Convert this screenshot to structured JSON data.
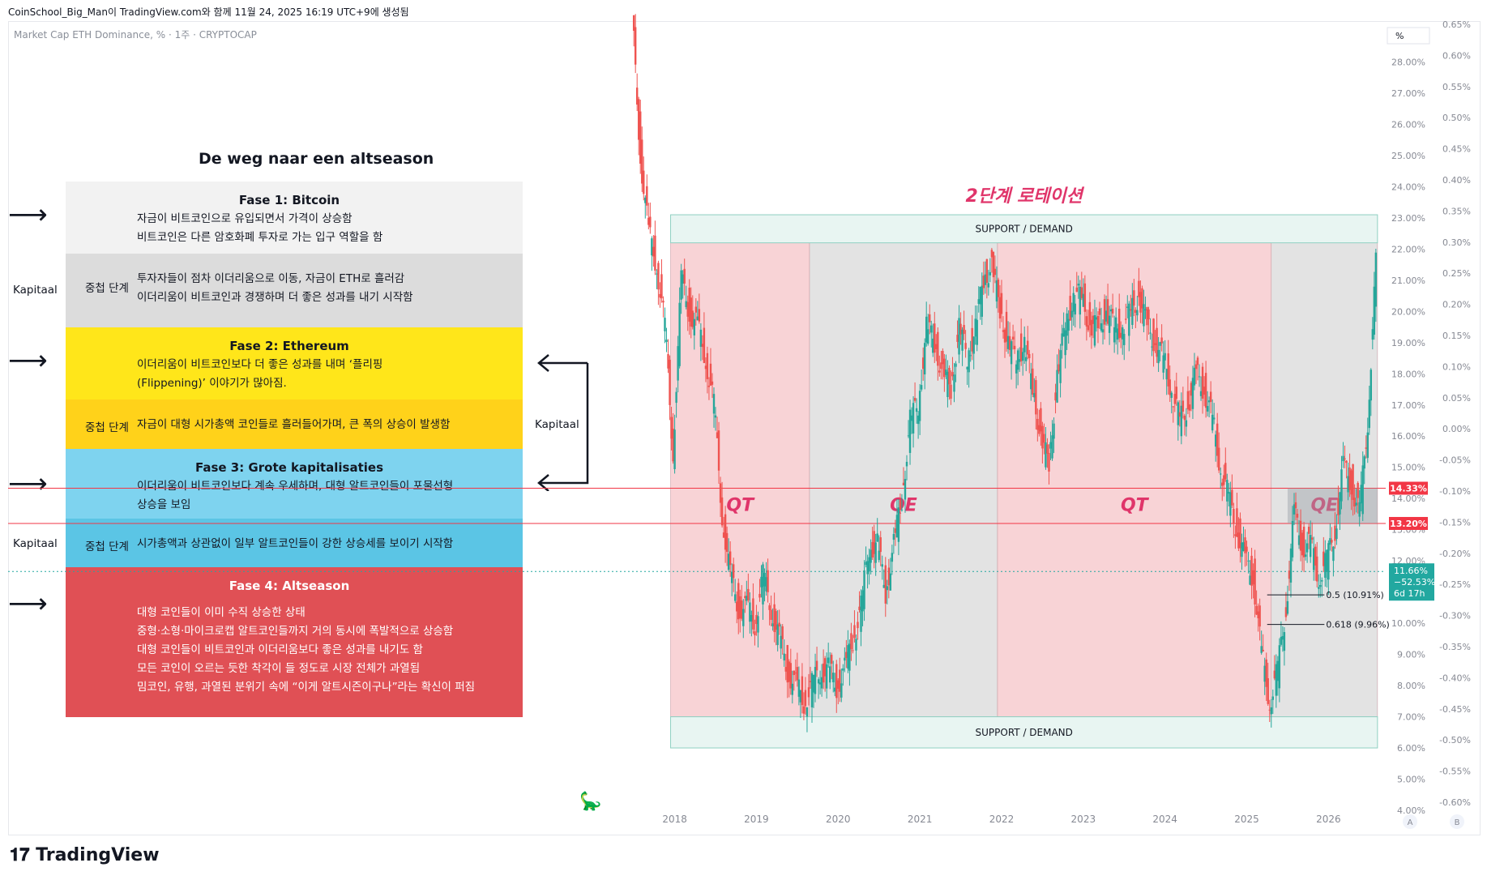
{
  "header": {
    "created_by": "CoinSchool_Big_Man이 TradingView.com와 함께 11월 24, 2025 16:19 UTC+9에 생성됨",
    "symbol_line": "Market Cap ETH Dominance, % · 1주 · CRYPTOCAP",
    "logo": "TradingView"
  },
  "infographic": {
    "title": "De weg naar een altseason",
    "boxes": [
      {
        "header": "Fase 1: Bitcoin",
        "side": "",
        "lines": [
          "자금이 비트코인으로 유입되면서 가격이 상승함",
          "비트코인은 다른 암호화폐 투자로 가는 입구 역할을 함"
        ],
        "color": "#f2f2f2"
      },
      {
        "header": "",
        "side": "중첩 단계",
        "lines": [
          "투자자들이 점차 이더리움으로 이동, 자금이 ETH로 흘러감",
          "이더리움이 비트코인과 경쟁하며 더 좋은 성과를 내기 시작함"
        ],
        "color": "#dcdcdc"
      },
      {
        "header": "Fase 2: Ethereum",
        "side": "",
        "lines": [
          "이더리움이 비트코인보다 더 좋은 성과를 내며 ‘플리핑",
          "(Flippening)’ 이야기가 많아짐."
        ],
        "color": "#ffe61a"
      },
      {
        "header": "",
        "side": "중첩 단계",
        "lines": [
          "자금이 대형 시가총액 코인들로 흘러들어가며, 큰 폭의 상승이 발생함"
        ],
        "color": "#ffd21a"
      },
      {
        "header": "Fase 3: Grote kapitalisaties",
        "side": "",
        "lines": [
          "이더리움이 비트코인보다 계속 우세하며, 대형 알트코인들이 포물선형",
          "상승을 보임"
        ],
        "color": "#7ed3ef"
      },
      {
        "header": "",
        "side": "중첩 단계",
        "lines": [
          "시가총액과 상관없이 일부 알트코인들이 강한 상승세를 보이기 시작함"
        ],
        "color": "#5bc5e5"
      },
      {
        "header": "Fase 4: Altseason",
        "side": "",
        "lines": [
          "대형 코인들이 이미 수직 상승한 상태",
          "중형·소형·마이크로캡 알트코인들까지 거의 동시에 폭발적으로 상승함",
          "대형 코인들이 비트코인과 이더리움보다 좋은 성과를 내기도 함",
          "모든 코인이 오르는 듯한 착각이 들 정도로 시장 전체가 과열됨",
          "밈코인, 유행, 과열된 분위기 속에 “이게 알트시즌이구나”라는 확신이 퍼짐"
        ],
        "color": "#e05055"
      }
    ],
    "kapitaal_labels": [
      "Kapitaal",
      "Kapitaal",
      "Kapitaal"
    ]
  },
  "chart_data": {
    "type": "candlestick",
    "title": "Market Cap ETH Dominance",
    "annotation_title": "2단계 로테이션",
    "x_tick_labels": [
      "2018",
      "2019",
      "2020",
      "2021",
      "2022",
      "2023",
      "2024",
      "2025",
      "2026"
    ],
    "y_axis_left_ticks": [
      "28.00%",
      "27.00%",
      "26.00%",
      "25.00%",
      "24.00%",
      "23.00%",
      "22.00%",
      "21.00%",
      "20.00%",
      "19.00%",
      "18.00%",
      "17.00%",
      "16.00%",
      "15.00%",
      "14.00%",
      "13.00%",
      "12.00%",
      "11.00%",
      "10.00%",
      "9.00%",
      "8.00%",
      "7.00%",
      "6.00%",
      "5.00%",
      "4.00%"
    ],
    "y_axis_right_ticks": [
      "0.65%",
      "0.60%",
      "0.55%",
      "0.50%",
      "0.45%",
      "0.40%",
      "0.35%",
      "0.30%",
      "0.25%",
      "0.20%",
      "0.15%",
      "0.10%",
      "0.05%",
      "0.00%",
      "-0.05%",
      "-0.10%",
      "-0.15%",
      "-0.20%",
      "-0.25%",
      "-0.30%",
      "-0.35%",
      "-0.40%",
      "-0.45%",
      "-0.50%",
      "-0.55%",
      "-0.60%"
    ],
    "ylim": [
      4,
      29
    ],
    "unit_label": "%",
    "price_labels": [
      {
        "text": "14.33%",
        "value": 14.33,
        "color": "#f23645"
      },
      {
        "text": "13.20%",
        "value": 13.2,
        "color": "#f23645"
      }
    ],
    "current_price": {
      "value": 11.66,
      "lines": [
        "11.66%",
        "−52.53%",
        "6d 17h"
      ],
      "color": "#22a8a0"
    },
    "fib_levels": [
      {
        "text": "0.5 (10.91%)",
        "value": 10.91
      },
      {
        "text": "0.618 (9.96%)",
        "value": 9.96
      }
    ],
    "zones": [
      {
        "label": "SUPPORT / DEMAND",
        "from": 22.2,
        "to": 23.1
      },
      {
        "label": "SUPPORT / DEMAND",
        "from": 6.0,
        "to": 7.0
      }
    ],
    "regimes": [
      {
        "label": "QT",
        "start": 2017.95,
        "end": 2019.65,
        "color": "#f8d3d6"
      },
      {
        "label": "QE",
        "start": 2019.65,
        "end": 2021.95,
        "color": "#e3e3e3"
      },
      {
        "label": "QT",
        "start": 2021.95,
        "end": 2025.3,
        "color": "#f8d3d6"
      },
      {
        "label": "QE",
        "start": 2025.3,
        "end": 2026.6,
        "color": "#e3e3e3"
      }
    ],
    "series": [
      {
        "x": [
          2017.5,
          2017.6,
          2017.7,
          2017.8,
          2017.9,
          2018.0,
          2018.1,
          2018.2,
          2018.3,
          2018.4,
          2018.5,
          2018.6,
          2018.7,
          2018.8,
          2018.9,
          2019.0,
          2019.1,
          2019.2,
          2019.3,
          2019.4,
          2019.5,
          2019.6,
          2019.7,
          2019.8,
          2019.9,
          2020.0,
          2020.1,
          2020.2,
          2020.3,
          2020.4,
          2020.5,
          2020.6,
          2020.7,
          2020.8,
          2020.9,
          2021.0,
          2021.1,
          2021.2,
          2021.3,
          2021.4,
          2021.5,
          2021.6,
          2021.7,
          2021.8,
          2021.9,
          2022.0,
          2022.1,
          2022.2,
          2022.3,
          2022.4,
          2022.5,
          2022.6,
          2022.7,
          2022.8,
          2022.9,
          2023.0,
          2023.1,
          2023.2,
          2023.3,
          2023.4,
          2023.5,
          2023.6,
          2023.7,
          2023.8,
          2023.9,
          2024.0,
          2024.1,
          2024.2,
          2024.3,
          2024.4,
          2024.5,
          2024.6,
          2024.7,
          2024.8,
          2024.9,
          2025.0,
          2025.1,
          2025.2,
          2025.3,
          2025.4,
          2025.5,
          2025.6,
          2025.7,
          2025.8,
          2025.9,
          2026.0,
          2026.1,
          2026.2,
          2026.3,
          2026.4,
          2026.5,
          2026.6
        ],
        "y": [
          29.5,
          25.0,
          22.5,
          21.5,
          19.5,
          15.5,
          21.0,
          20.0,
          19.5,
          18.5,
          17.0,
          13.5,
          11.5,
          10.5,
          10.5,
          10.0,
          11.5,
          10.5,
          9.5,
          8.5,
          8.0,
          7.5,
          8.0,
          8.5,
          8.5,
          8.0,
          8.5,
          9.5,
          10.5,
          12.5,
          12.5,
          11.0,
          12.5,
          14.0,
          16.5,
          17.0,
          19.5,
          19.0,
          18.0,
          17.5,
          19.5,
          18.5,
          19.5,
          21.0,
          21.5,
          20.0,
          19.0,
          18.5,
          19.0,
          17.5,
          16.0,
          15.0,
          18.0,
          19.5,
          20.5,
          20.5,
          19.5,
          19.5,
          20.0,
          19.5,
          19.5,
          20.0,
          20.5,
          19.5,
          19.0,
          18.5,
          17.5,
          16.5,
          17.0,
          18.0,
          17.5,
          16.5,
          15.0,
          14.0,
          13.0,
          12.0,
          11.5,
          9.0,
          7.5,
          8.5,
          10.5,
          13.5,
          12.5,
          12.5,
          11.5,
          12.0,
          13.0,
          15.0,
          14.5,
          13.5,
          16.5,
          21.5
        ]
      }
    ]
  }
}
